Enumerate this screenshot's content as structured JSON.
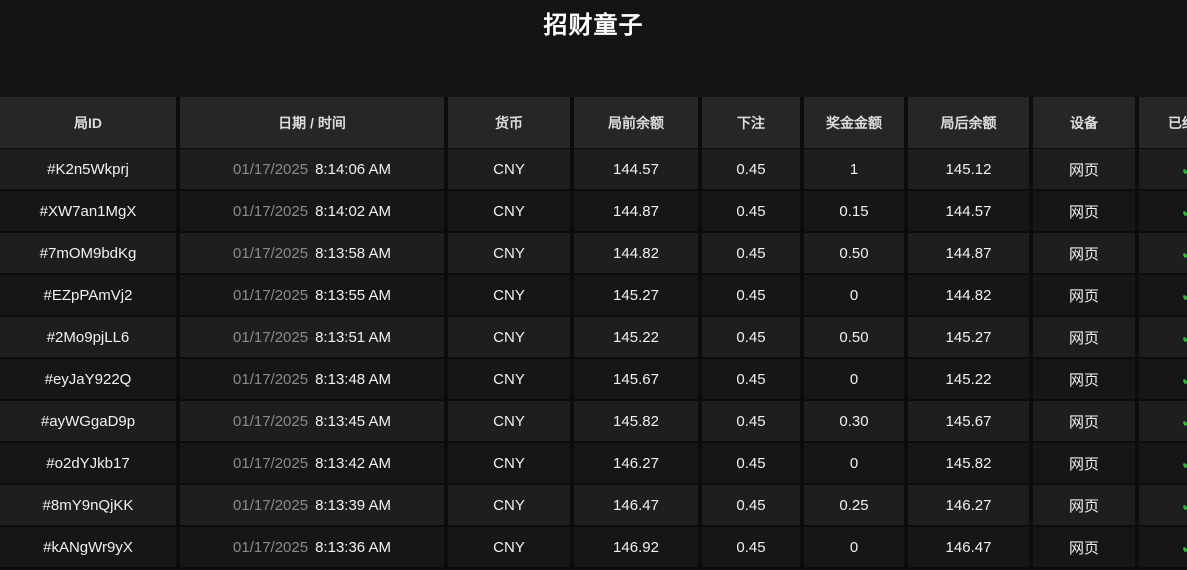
{
  "page": {
    "title": "招财童子"
  },
  "theme": {
    "page_bg": "#141414",
    "table_gap_bg": "#0c0c0c",
    "header_bg": "#262626",
    "row_odd_bg": "#1e1e1e",
    "row_even_bg": "#161616",
    "header_text": "#dcdcdc",
    "cell_text": "#f1f1f1",
    "date_text": "#8a8a8a",
    "check_green": "#2eb82d",
    "title_text": "#ffffff"
  },
  "table": {
    "columns": [
      {
        "key": "round_id",
        "label": "局ID"
      },
      {
        "key": "datetime",
        "label": "日期 / 时间"
      },
      {
        "key": "currency",
        "label": "货币"
      },
      {
        "key": "balance_before",
        "label": "局前余额"
      },
      {
        "key": "bet",
        "label": "下注"
      },
      {
        "key": "prize",
        "label": "奖金金额"
      },
      {
        "key": "balance_after",
        "label": "局后余额"
      },
      {
        "key": "device",
        "label": "设备"
      },
      {
        "key": "ended",
        "label": "已结束"
      }
    ],
    "ended_icon": "✓",
    "rows": [
      {
        "round_id": "#K2n5Wkprj",
        "date": "01/17/2025",
        "time": "8:14:06 AM",
        "currency": "CNY",
        "balance_before": "144.57",
        "bet": "0.45",
        "prize": "1",
        "balance_after": "145.12",
        "device": "网页",
        "ended": true
      },
      {
        "round_id": "#XW7an1MgX",
        "date": "01/17/2025",
        "time": "8:14:02 AM",
        "currency": "CNY",
        "balance_before": "144.87",
        "bet": "0.45",
        "prize": "0.15",
        "balance_after": "144.57",
        "device": "网页",
        "ended": true
      },
      {
        "round_id": "#7mOM9bdKg",
        "date": "01/17/2025",
        "time": "8:13:58 AM",
        "currency": "CNY",
        "balance_before": "144.82",
        "bet": "0.45",
        "prize": "0.50",
        "balance_after": "144.87",
        "device": "网页",
        "ended": true
      },
      {
        "round_id": "#EZpPAmVj2",
        "date": "01/17/2025",
        "time": "8:13:55 AM",
        "currency": "CNY",
        "balance_before": "145.27",
        "bet": "0.45",
        "prize": "0",
        "balance_after": "144.82",
        "device": "网页",
        "ended": true
      },
      {
        "round_id": "#2Mo9pjLL6",
        "date": "01/17/2025",
        "time": "8:13:51 AM",
        "currency": "CNY",
        "balance_before": "145.22",
        "bet": "0.45",
        "prize": "0.50",
        "balance_after": "145.27",
        "device": "网页",
        "ended": true
      },
      {
        "round_id": "#eyJaY922Q",
        "date": "01/17/2025",
        "time": "8:13:48 AM",
        "currency": "CNY",
        "balance_before": "145.67",
        "bet": "0.45",
        "prize": "0",
        "balance_after": "145.22",
        "device": "网页",
        "ended": true
      },
      {
        "round_id": "#ayWGgaD9p",
        "date": "01/17/2025",
        "time": "8:13:45 AM",
        "currency": "CNY",
        "balance_before": "145.82",
        "bet": "0.45",
        "prize": "0.30",
        "balance_after": "145.67",
        "device": "网页",
        "ended": true
      },
      {
        "round_id": "#o2dYJkb17",
        "date": "01/17/2025",
        "time": "8:13:42 AM",
        "currency": "CNY",
        "balance_before": "146.27",
        "bet": "0.45",
        "prize": "0",
        "balance_after": "145.82",
        "device": "网页",
        "ended": true
      },
      {
        "round_id": "#8mY9nQjKK",
        "date": "01/17/2025",
        "time": "8:13:39 AM",
        "currency": "CNY",
        "balance_before": "146.47",
        "bet": "0.45",
        "prize": "0.25",
        "balance_after": "146.27",
        "device": "网页",
        "ended": true
      },
      {
        "round_id": "#kANgWr9yX",
        "date": "01/17/2025",
        "time": "8:13:36 AM",
        "currency": "CNY",
        "balance_before": "146.92",
        "bet": "0.45",
        "prize": "0",
        "balance_after": "146.47",
        "device": "网页",
        "ended": true
      }
    ]
  }
}
